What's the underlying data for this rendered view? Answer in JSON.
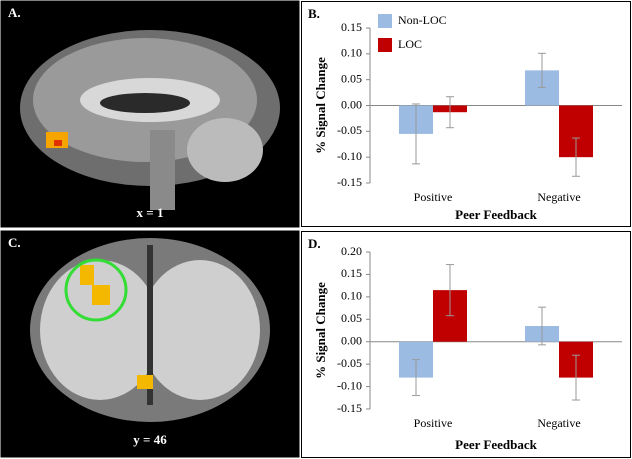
{
  "panels": [
    {
      "label": "A.",
      "caption": "x = 1"
    },
    {
      "label": "C.",
      "caption": "y = 46"
    }
  ],
  "chart_data": [
    {
      "type": "bar",
      "panel_label": "B.",
      "y_label": "% Signal Change",
      "x_label": "Peer Feedback",
      "categories": [
        "Positive",
        "Negative"
      ],
      "series": [
        {
          "name": "Non-LOC",
          "color": "#9cbbe3",
          "values": [
            -0.055,
            0.068
          ],
          "errors": [
            0.058,
            0.033
          ]
        },
        {
          "name": "LOC",
          "color": "#c00000",
          "values": [
            -0.013,
            -0.1
          ],
          "errors": [
            0.03,
            0.037
          ]
        }
      ],
      "ylim": [
        -0.15,
        0.15
      ],
      "yticks": [
        {
          "value": 0.15,
          "label": "0.15"
        },
        {
          "value": 0.1,
          "label": "0.10"
        },
        {
          "value": 0.05,
          "label": "0.05"
        },
        {
          "value": 0,
          "label": "0.00"
        },
        {
          "value": -0.05,
          "label": "-0.05"
        },
        {
          "value": -0.1,
          "label": "-0.10"
        },
        {
          "value": -0.15,
          "label": "-0.15"
        }
      ],
      "legend": "top-left"
    },
    {
      "type": "bar",
      "panel_label": "D.",
      "y_label": "% Signal Change",
      "x_label": "Peer Feedback",
      "categories": [
        "Positive",
        "Negative"
      ],
      "series": [
        {
          "color": "#9cbbe3",
          "values": [
            -0.08,
            0.035
          ],
          "errors": [
            0.04,
            0.042
          ]
        },
        {
          "color": "#c00000",
          "values": [
            0.115,
            -0.08
          ],
          "errors": [
            0.057,
            0.05
          ]
        }
      ],
      "ylim": [
        -0.15,
        0.2
      ],
      "yticks": [
        {
          "value": 0.2,
          "label": "0.20"
        },
        {
          "value": 0.15,
          "label": "0.15"
        },
        {
          "value": 0.1,
          "label": "0.10"
        },
        {
          "value": 0.05,
          "label": "0.05"
        },
        {
          "value": 0,
          "label": "0.00"
        },
        {
          "value": -0.05,
          "label": "-0.05"
        },
        {
          "value": -0.1,
          "label": "-0.10"
        },
        {
          "value": -0.15,
          "label": "-0.15"
        }
      ]
    }
  ]
}
